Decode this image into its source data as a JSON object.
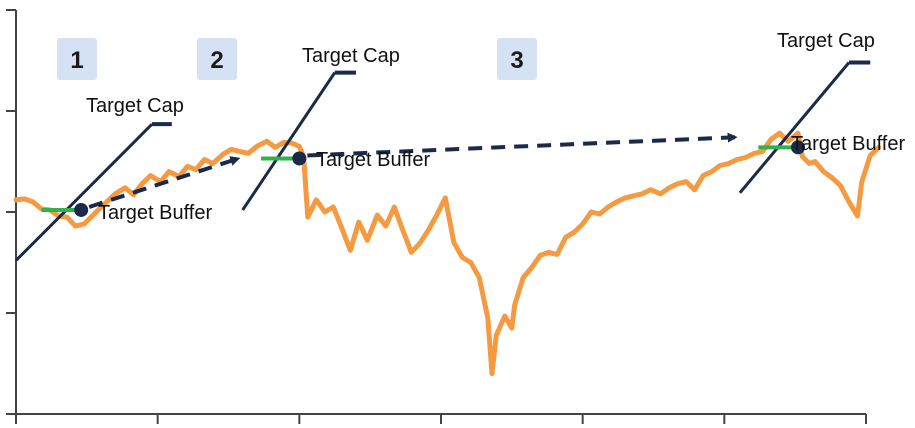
{
  "chart_data": {
    "type": "line",
    "title": "",
    "xlabel": "",
    "ylabel": "",
    "grid": false,
    "legend": "none",
    "x_axis_ticks": [
      0,
      1,
      2,
      3,
      4,
      5,
      6
    ],
    "y_axis_ticks": [
      0,
      1,
      2,
      3,
      4
    ],
    "xlim": [
      0,
      6
    ],
    "ylim": [
      0,
      4
    ],
    "colors": {
      "series": "#f59a40",
      "buffer": "#2db34a",
      "annotation": "#1b2a4a",
      "badge": "#d4e2f4",
      "axis": "#444444"
    },
    "series": [
      {
        "values": [
          [
            0.0,
            2.12
          ],
          [
            0.06,
            2.13
          ],
          [
            0.12,
            2.1
          ],
          [
            0.18,
            2.03
          ],
          [
            0.24,
            2.02
          ],
          [
            0.3,
            1.96
          ],
          [
            0.36,
            1.95
          ],
          [
            0.42,
            1.86
          ],
          [
            0.48,
            1.88
          ],
          [
            0.53,
            1.95
          ],
          [
            0.58,
            2.02
          ],
          [
            0.64,
            2.1
          ],
          [
            0.7,
            2.18
          ],
          [
            0.77,
            2.24
          ],
          [
            0.83,
            2.17
          ],
          [
            0.89,
            2.28
          ],
          [
            0.95,
            2.36
          ],
          [
            1.02,
            2.3
          ],
          [
            1.08,
            2.4
          ],
          [
            1.15,
            2.35
          ],
          [
            1.21,
            2.45
          ],
          [
            1.27,
            2.42
          ],
          [
            1.33,
            2.52
          ],
          [
            1.39,
            2.48
          ],
          [
            1.46,
            2.57
          ],
          [
            1.52,
            2.62
          ],
          [
            1.58,
            2.6
          ],
          [
            1.64,
            2.58
          ],
          [
            1.7,
            2.65
          ],
          [
            1.77,
            2.7
          ],
          [
            1.83,
            2.64
          ],
          [
            1.89,
            2.69
          ],
          [
            1.95,
            2.68
          ],
          [
            2.0,
            2.65
          ],
          [
            2.03,
            2.55
          ],
          [
            2.06,
            1.95
          ],
          [
            2.12,
            2.12
          ],
          [
            2.18,
            2.0
          ],
          [
            2.24,
            2.05
          ],
          [
            2.3,
            1.84
          ],
          [
            2.36,
            1.62
          ],
          [
            2.42,
            1.9
          ],
          [
            2.48,
            1.72
          ],
          [
            2.55,
            1.97
          ],
          [
            2.61,
            1.86
          ],
          [
            2.67,
            2.05
          ],
          [
            2.73,
            1.82
          ],
          [
            2.79,
            1.6
          ],
          [
            2.85,
            1.69
          ],
          [
            2.91,
            1.82
          ],
          [
            2.97,
            1.97
          ],
          [
            3.03,
            2.14
          ],
          [
            3.09,
            1.7
          ],
          [
            3.15,
            1.55
          ],
          [
            3.21,
            1.5
          ],
          [
            3.27,
            1.35
          ],
          [
            3.33,
            0.95
          ],
          [
            3.36,
            0.4
          ],
          [
            3.39,
            0.78
          ],
          [
            3.45,
            0.97
          ],
          [
            3.5,
            0.85
          ],
          [
            3.52,
            1.08
          ],
          [
            3.58,
            1.35
          ],
          [
            3.64,
            1.45
          ],
          [
            3.7,
            1.57
          ],
          [
            3.76,
            1.6
          ],
          [
            3.82,
            1.58
          ],
          [
            3.88,
            1.75
          ],
          [
            3.94,
            1.8
          ],
          [
            4.0,
            1.88
          ],
          [
            4.06,
            2.0
          ],
          [
            4.12,
            1.98
          ],
          [
            4.18,
            2.05
          ],
          [
            4.24,
            2.1
          ],
          [
            4.3,
            2.14
          ],
          [
            4.36,
            2.16
          ],
          [
            4.42,
            2.18
          ],
          [
            4.48,
            2.22
          ],
          [
            4.55,
            2.18
          ],
          [
            4.61,
            2.24
          ],
          [
            4.67,
            2.28
          ],
          [
            4.73,
            2.3
          ],
          [
            4.79,
            2.22
          ],
          [
            4.85,
            2.36
          ],
          [
            4.91,
            2.4
          ],
          [
            4.97,
            2.46
          ],
          [
            5.03,
            2.48
          ],
          [
            5.09,
            2.52
          ],
          [
            5.15,
            2.54
          ],
          [
            5.21,
            2.58
          ],
          [
            5.27,
            2.6
          ],
          [
            5.33,
            2.72
          ],
          [
            5.39,
            2.78
          ],
          [
            5.45,
            2.7
          ],
          [
            5.52,
            2.78
          ],
          [
            5.55,
            2.55
          ],
          [
            5.6,
            2.48
          ],
          [
            5.64,
            2.5
          ],
          [
            5.7,
            2.4
          ],
          [
            5.76,
            2.34
          ],
          [
            5.82,
            2.26
          ],
          [
            5.88,
            2.1
          ],
          [
            5.94,
            1.96
          ],
          [
            5.97,
            2.3
          ],
          [
            6.03,
            2.56
          ],
          [
            6.09,
            2.64
          ]
        ]
      }
    ],
    "annotations": {
      "labels": {
        "cap": "Target Cap",
        "buffer": "Target Buffer"
      },
      "periods": [
        {
          "badge": "1",
          "cap_label": "Target Cap",
          "buffer_label": "Target Buffer",
          "buffer_start": [
            0.18,
            2.02
          ],
          "buffer_end": [
            0.46,
            2.02
          ],
          "cap_line": [
            [
              0.0,
              1.52
            ],
            [
              0.96,
              2.87
            ]
          ],
          "cap_hook": [
            [
              0.96,
              2.87
            ],
            [
              1.1,
              2.87
            ]
          ],
          "arrow_from": [
            0.46,
            2.02
          ],
          "arrow_to": [
            1.57,
            2.53
          ]
        },
        {
          "badge": "2",
          "cap_label": "Target Cap",
          "buffer_label": "Target Buffer",
          "buffer_start": [
            1.73,
            2.53
          ],
          "buffer_end": [
            2.0,
            2.53
          ],
          "cap_line": [
            [
              1.6,
              2.02
            ],
            [
              2.25,
              3.38
            ]
          ],
          "cap_hook": [
            [
              2.25,
              3.38
            ],
            [
              2.4,
              3.38
            ]
          ],
          "arrow_from": [
            2.0,
            2.53
          ],
          "arrow_to": [
            5.08,
            2.74
          ]
        },
        {
          "badge": "3",
          "cap_label": "Target Cap",
          "buffer_label": "Target Buffer",
          "buffer_start": [
            5.24,
            2.64
          ],
          "buffer_end": [
            5.52,
            2.64
          ],
          "cap_line": [
            [
              5.11,
              2.19
            ],
            [
              5.88,
              3.48
            ]
          ],
          "cap_hook": [
            [
              5.88,
              3.48
            ],
            [
              6.03,
              3.48
            ]
          ]
        }
      ]
    }
  }
}
